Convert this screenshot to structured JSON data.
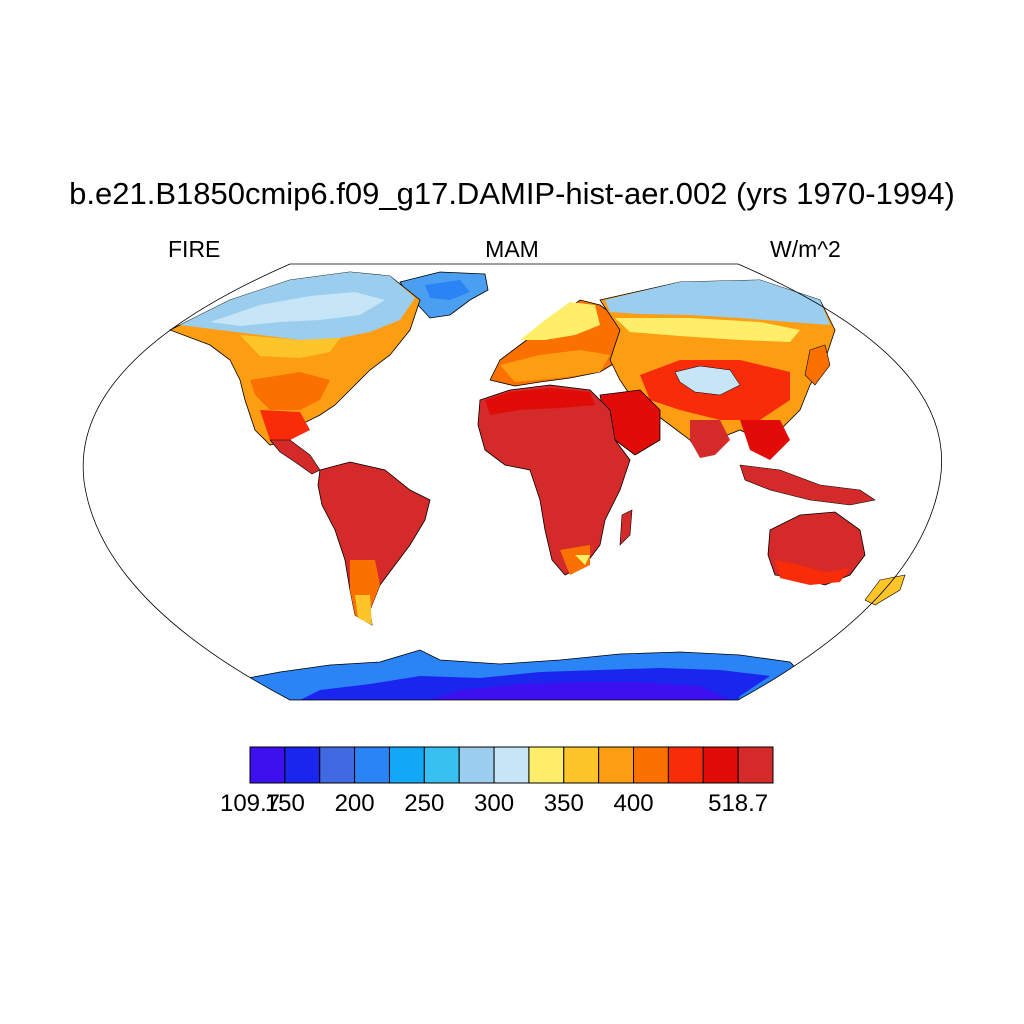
{
  "title": "b.e21.B1850cmip6.f09_g17.DAMIP-hist-aer.002 (yrs 1970-1994)",
  "left_string": "FIRE",
  "center_string": "MAM",
  "right_string": "W/m^2",
  "colorbar": {
    "min": 109.7,
    "max": 518.7,
    "levels": [
      150,
      175,
      200,
      225,
      250,
      275,
      300,
      325,
      350,
      375,
      400,
      425,
      450
    ],
    "labels": [
      {
        "text": "109.7",
        "pos": 0
      },
      {
        "text": "150",
        "pos": 1
      },
      {
        "text": "200",
        "pos": 3
      },
      {
        "text": "250",
        "pos": 5
      },
      {
        "text": "300",
        "pos": 7
      },
      {
        "text": "350",
        "pos": 9
      },
      {
        "text": "400",
        "pos": 11
      },
      {
        "text": "518.7",
        "pos": 14
      }
    ],
    "colors": [
      "#3d10f0",
      "#1a25ee",
      "#4169e1",
      "#2a84f5",
      "#12a8f5",
      "#38c0f0",
      "#9acdee",
      "#c6e5f6",
      "#ffee6a",
      "#fec52a",
      "#fd9e12",
      "#fb7100",
      "#f92c0a",
      "#e10c08",
      "#d42a2a"
    ]
  }
}
